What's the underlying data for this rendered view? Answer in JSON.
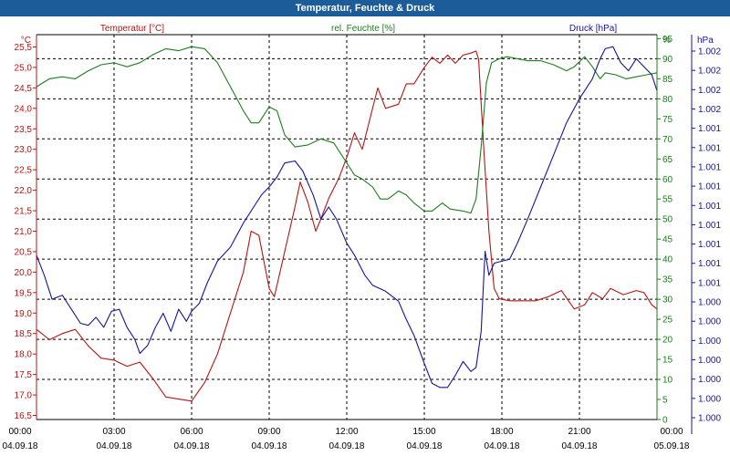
{
  "window": {
    "title": "Temperatur, Feuchte & Druck"
  },
  "colors": {
    "temperature": "#b81414",
    "humidity": "#1e7d1e",
    "pressure": "#1414a0",
    "grid": "#000000",
    "text": "#000000"
  },
  "chart_data": {
    "type": "line",
    "title": "Temperatur, Feuchte & Druck",
    "grid": true,
    "x_ticks": [
      {
        "h": 0,
        "time": "00:00",
        "date": "04.09.18"
      },
      {
        "h": 3,
        "time": "03:00",
        "date": "04.09.18"
      },
      {
        "h": 6,
        "time": "06:00",
        "date": "04.09.18"
      },
      {
        "h": 9,
        "time": "09:00",
        "date": "04.09.18"
      },
      {
        "h": 12,
        "time": "12:00",
        "date": "04.09.18"
      },
      {
        "h": 15,
        "time": "15:00",
        "date": "04.09.18"
      },
      {
        "h": 18,
        "time": "18:00",
        "date": "04.09.18"
      },
      {
        "h": 21,
        "time": "21:00",
        "date": "04.09.18"
      },
      {
        "h": 24,
        "time": "00:00",
        "date": "05.09.18"
      }
    ],
    "axes": {
      "temperature": {
        "unit": "°C",
        "min": 16.4,
        "max": 25.8,
        "ticks": [
          "16.5",
          "17.0",
          "17.5",
          "18.0",
          "18.5",
          "19.0",
          "19.5",
          "20.0",
          "20.5",
          "21.0",
          "21.5",
          "22.0",
          "22.5",
          "23.0",
          "23.5",
          "24.0",
          "24.5",
          "25.0",
          "25.5"
        ],
        "tick_values": [
          16.5,
          17.0,
          17.5,
          18.0,
          18.5,
          19.0,
          19.5,
          20.0,
          20.5,
          21.0,
          21.5,
          22.0,
          22.5,
          23.0,
          23.5,
          24.0,
          24.5,
          25.0,
          25.5
        ],
        "tick_labels": [
          "16,5",
          "17,0",
          "17,5",
          "18,0",
          "18,5",
          "19,0",
          "19,5",
          "20,0",
          "20,5",
          "21,0",
          "21,5",
          "22,0",
          "22,5",
          "23,0",
          "23,5",
          "24,0",
          "24,5",
          "25,0",
          "25,5"
        ]
      },
      "humidity": {
        "unit": "%",
        "min": 0,
        "max": 96,
        "tick_values": [
          0,
          5,
          10,
          15,
          20,
          25,
          30,
          35,
          40,
          45,
          50,
          55,
          60,
          65,
          70,
          75,
          80,
          85,
          90,
          95
        ],
        "tick_labels": [
          "0",
          "5",
          "10",
          "15",
          "20",
          "25",
          "30",
          "35",
          "40",
          "45",
          "50",
          "55",
          "60",
          "65",
          "70",
          "75",
          "80",
          "85",
          "90",
          "95"
        ]
      },
      "pressure": {
        "unit": "hPa",
        "tick_labels": [
          "1.000",
          "1.000",
          "1.000",
          "1.000",
          "1.000",
          "1.000",
          "1.000",
          "1.001",
          "1.001",
          "1.001",
          "1.001",
          "1.001",
          "1.001",
          "1.001",
          "1.001",
          "1.001",
          "1.002",
          "1.002",
          "1.002",
          "1.002"
        ]
      }
    },
    "series": [
      {
        "name": "Temperatur [°C]",
        "axis": "temperature",
        "points": [
          [
            0,
            18.6
          ],
          [
            0.5,
            18.35
          ],
          [
            1,
            18.5
          ],
          [
            1.5,
            18.6
          ],
          [
            2,
            18.2
          ],
          [
            2.5,
            17.9
          ],
          [
            3,
            17.85
          ],
          [
            3.5,
            17.7
          ],
          [
            4,
            17.8
          ],
          [
            4.5,
            17.4
          ],
          [
            5,
            16.95
          ],
          [
            5.5,
            16.9
          ],
          [
            6,
            16.85
          ],
          [
            6.5,
            17.3
          ],
          [
            7,
            18.0
          ],
          [
            7.5,
            19.0
          ],
          [
            8,
            20.0
          ],
          [
            8.3,
            21.0
          ],
          [
            8.6,
            20.9
          ],
          [
            9,
            19.6
          ],
          [
            9.2,
            19.4
          ],
          [
            9.6,
            20.5
          ],
          [
            10,
            21.6
          ],
          [
            10.2,
            22.2
          ],
          [
            10.5,
            21.7
          ],
          [
            10.8,
            21.0
          ],
          [
            11,
            21.3
          ],
          [
            11.3,
            21.8
          ],
          [
            11.7,
            22.3
          ],
          [
            12,
            22.8
          ],
          [
            12.3,
            23.4
          ],
          [
            12.6,
            23.0
          ],
          [
            13,
            24.0
          ],
          [
            13.2,
            24.5
          ],
          [
            13.5,
            24.0
          ],
          [
            14,
            24.1
          ],
          [
            14.3,
            24.6
          ],
          [
            14.6,
            24.6
          ],
          [
            15,
            25.0
          ],
          [
            15.3,
            25.25
          ],
          [
            15.6,
            25.1
          ],
          [
            15.9,
            25.3
          ],
          [
            16.2,
            25.1
          ],
          [
            16.5,
            25.3
          ],
          [
            16.8,
            25.35
          ],
          [
            17,
            25.4
          ],
          [
            17.1,
            25.2
          ],
          [
            17.3,
            23.0
          ],
          [
            17.5,
            21.0
          ],
          [
            17.7,
            19.6
          ],
          [
            17.9,
            19.35
          ],
          [
            18.3,
            19.3
          ],
          [
            18.8,
            19.3
          ],
          [
            19.3,
            19.3
          ],
          [
            19.8,
            19.4
          ],
          [
            20.3,
            19.55
          ],
          [
            20.8,
            19.1
          ],
          [
            21.2,
            19.2
          ],
          [
            21.5,
            19.5
          ],
          [
            21.9,
            19.35
          ],
          [
            22.2,
            19.6
          ],
          [
            22.7,
            19.45
          ],
          [
            23.2,
            19.55
          ],
          [
            23.5,
            19.5
          ],
          [
            23.8,
            19.2
          ],
          [
            24,
            19.1
          ]
        ]
      },
      {
        "name": "rel. Feuchte [%]",
        "axis": "humidity",
        "points": [
          [
            0,
            83
          ],
          [
            0.5,
            85
          ],
          [
            1,
            85.5
          ],
          [
            1.5,
            85
          ],
          [
            2,
            87
          ],
          [
            2.5,
            88.5
          ],
          [
            3,
            89
          ],
          [
            3.5,
            88
          ],
          [
            4,
            89
          ],
          [
            4.5,
            91
          ],
          [
            5,
            92.5
          ],
          [
            5.5,
            92
          ],
          [
            6,
            93
          ],
          [
            6.5,
            92.5
          ],
          [
            7,
            89
          ],
          [
            7.5,
            83
          ],
          [
            8,
            77
          ],
          [
            8.3,
            74
          ],
          [
            8.6,
            74
          ],
          [
            9,
            78
          ],
          [
            9.3,
            77
          ],
          [
            9.6,
            71
          ],
          [
            10,
            68
          ],
          [
            10.5,
            68.5
          ],
          [
            11,
            70
          ],
          [
            11.5,
            69
          ],
          [
            12,
            64
          ],
          [
            12.3,
            61
          ],
          [
            12.6,
            60
          ],
          [
            13,
            58
          ],
          [
            13.3,
            55
          ],
          [
            13.6,
            55
          ],
          [
            14,
            57
          ],
          [
            14.3,
            56
          ],
          [
            14.6,
            54
          ],
          [
            15,
            52
          ],
          [
            15.3,
            52
          ],
          [
            15.7,
            54
          ],
          [
            16,
            52.5
          ],
          [
            16.5,
            52
          ],
          [
            16.8,
            51.5
          ],
          [
            17.0,
            55
          ],
          [
            17.2,
            68
          ],
          [
            17.4,
            84
          ],
          [
            17.6,
            89
          ],
          [
            17.9,
            90
          ],
          [
            18.2,
            90.5
          ],
          [
            18.6,
            90
          ],
          [
            19,
            89.5
          ],
          [
            19.5,
            89.5
          ],
          [
            20,
            88.5
          ],
          [
            20.5,
            87
          ],
          [
            20.8,
            88
          ],
          [
            21.2,
            90.5
          ],
          [
            21.5,
            88
          ],
          [
            21.8,
            85
          ],
          [
            22,
            86.5
          ],
          [
            22.4,
            86
          ],
          [
            22.8,
            85
          ],
          [
            23.2,
            85.5
          ],
          [
            23.6,
            86
          ],
          [
            24,
            86.5
          ]
        ]
      },
      {
        "name": "Druck [hPa]",
        "axis": "pressure",
        "points": [
          [
            0,
            41
          ],
          [
            0.3,
            36
          ],
          [
            0.6,
            30
          ],
          [
            1,
            31
          ],
          [
            1.4,
            27
          ],
          [
            1.7,
            24
          ],
          [
            2,
            23.5
          ],
          [
            2.3,
            25.5
          ],
          [
            2.6,
            23
          ],
          [
            2.9,
            27
          ],
          [
            3.2,
            27.5
          ],
          [
            3.5,
            23
          ],
          [
            3.8,
            20
          ],
          [
            4,
            16.5
          ],
          [
            4.3,
            18.5
          ],
          [
            4.6,
            23
          ],
          [
            4.9,
            26.5
          ],
          [
            5.2,
            22
          ],
          [
            5.5,
            27.5
          ],
          [
            5.8,
            24.5
          ],
          [
            6,
            27
          ],
          [
            6.3,
            29
          ],
          [
            6.6,
            34
          ],
          [
            7,
            39.5
          ],
          [
            7.5,
            43
          ],
          [
            8,
            49
          ],
          [
            8.4,
            53
          ],
          [
            8.7,
            56
          ],
          [
            9,
            58
          ],
          [
            9.3,
            60.5
          ],
          [
            9.6,
            64
          ],
          [
            10,
            64.5
          ],
          [
            10.3,
            62
          ],
          [
            10.7,
            56
          ],
          [
            11,
            50
          ],
          [
            11.3,
            53
          ],
          [
            11.6,
            50
          ],
          [
            12,
            44
          ],
          [
            12.3,
            41
          ],
          [
            12.7,
            36
          ],
          [
            13,
            33.5
          ],
          [
            13.5,
            32
          ],
          [
            14,
            29.5
          ],
          [
            14.3,
            25
          ],
          [
            14.6,
            21
          ],
          [
            15,
            14
          ],
          [
            15.3,
            9
          ],
          [
            15.6,
            8
          ],
          [
            15.9,
            8
          ],
          [
            16.2,
            11
          ],
          [
            16.5,
            14.5
          ],
          [
            16.8,
            12
          ],
          [
            17,
            13
          ],
          [
            17.2,
            22
          ],
          [
            17.35,
            42
          ],
          [
            17.5,
            36
          ],
          [
            17.7,
            39
          ],
          [
            18,
            39.5
          ],
          [
            18.3,
            40
          ],
          [
            18.6,
            44
          ],
          [
            19,
            50
          ],
          [
            19.5,
            58
          ],
          [
            20,
            66
          ],
          [
            20.5,
            74
          ],
          [
            21,
            80
          ],
          [
            21.5,
            85
          ],
          [
            21.8,
            90
          ],
          [
            22,
            92.5
          ],
          [
            22.3,
            93
          ],
          [
            22.6,
            89
          ],
          [
            22.9,
            87
          ],
          [
            23.2,
            90
          ],
          [
            23.5,
            88
          ],
          [
            23.8,
            86
          ],
          [
            24,
            82
          ]
        ]
      }
    ]
  }
}
